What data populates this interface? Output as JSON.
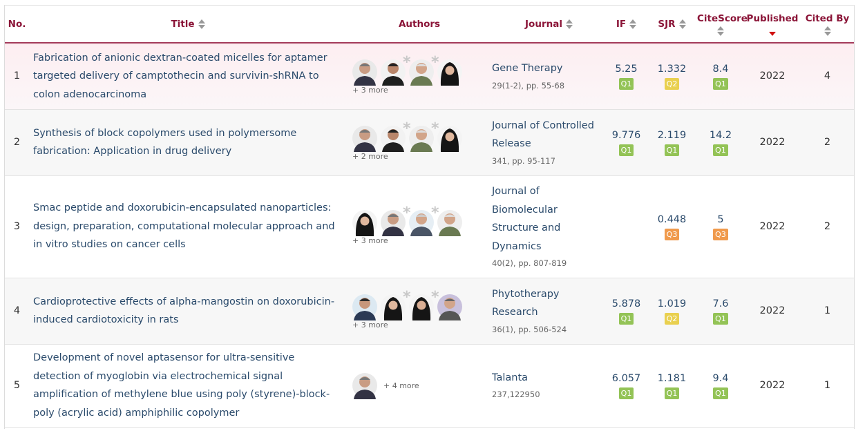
{
  "headers": {
    "no": "No.",
    "title": "Title",
    "authors": "Authors",
    "journal": "Journal",
    "if": "IF",
    "sjr": "SJR",
    "citescore": "CiteScore",
    "published": "Published",
    "cited_by": "Cited By"
  },
  "colors": {
    "header_text": "#8b1538",
    "link_text": "#2a4a6b",
    "q1": "#93c356",
    "q2": "#e9d04f",
    "q3": "#f09a4c"
  },
  "rows": [
    {
      "no": "1",
      "title": "Fabrication of anionic dextran-coated micelles for aptamer targeted delivery of camptothecin and survivin-shRNA to colon adenocarcinoma",
      "authors_more": "+ 3 more",
      "journal": "Gene Therapy",
      "volume": "29(1-2), pp. 55-68",
      "if": "5.25",
      "if_q": "Q1",
      "sjr": "1.332",
      "sjr_q": "Q2",
      "citescore": "8.4",
      "cs_q": "Q1",
      "published": "2022",
      "cited_by": "4"
    },
    {
      "no": "2",
      "title": "Synthesis of block copolymers used in polymersome fabrication: Application in drug delivery",
      "authors_more": "+ 2 more",
      "journal": "Journal of Controlled Release",
      "volume": "341, pp. 95-117",
      "if": "9.776",
      "if_q": "Q1",
      "sjr": "2.119",
      "sjr_q": "Q1",
      "citescore": "14.2",
      "cs_q": "Q1",
      "published": "2022",
      "cited_by": "2"
    },
    {
      "no": "3",
      "title": "Smac peptide and doxorubicin-encapsulated nanoparticles: design, preparation, computational molecular approach and in vitro studies on cancer cells",
      "authors_more": "+ 3 more",
      "journal": "Journal of Biomolecular Structure and Dynamics",
      "volume": "40(2), pp. 807-819",
      "if": "",
      "if_q": "",
      "sjr": "0.448",
      "sjr_q": "Q3",
      "citescore": "5",
      "cs_q": "Q3",
      "published": "2022",
      "cited_by": "2"
    },
    {
      "no": "4",
      "title": "Cardioprotective effects of alpha-mangostin on doxorubicin-induced cardiotoxicity in rats",
      "authors_more": "+ 3 more",
      "journal": "Phytotherapy Research",
      "volume": "36(1), pp. 506-524",
      "if": "5.878",
      "if_q": "Q1",
      "sjr": "1.019",
      "sjr_q": "Q2",
      "citescore": "7.6",
      "cs_q": "Q1",
      "published": "2022",
      "cited_by": "1"
    },
    {
      "no": "5",
      "title": "Development of novel aptasensor for ultra-sensitive detection of myoglobin via electrochemical signal amplification of methylene blue using poly (styrene)-block-poly (acrylic acid) amphiphilic copolymer",
      "authors_more": "+ 4 more",
      "journal": "Talanta",
      "volume": "237,122950",
      "if": "6.057",
      "if_q": "Q1",
      "sjr": "1.181",
      "sjr_q": "Q1",
      "citescore": "9.4",
      "cs_q": "Q1",
      "published": "2022",
      "cited_by": "1"
    }
  ]
}
